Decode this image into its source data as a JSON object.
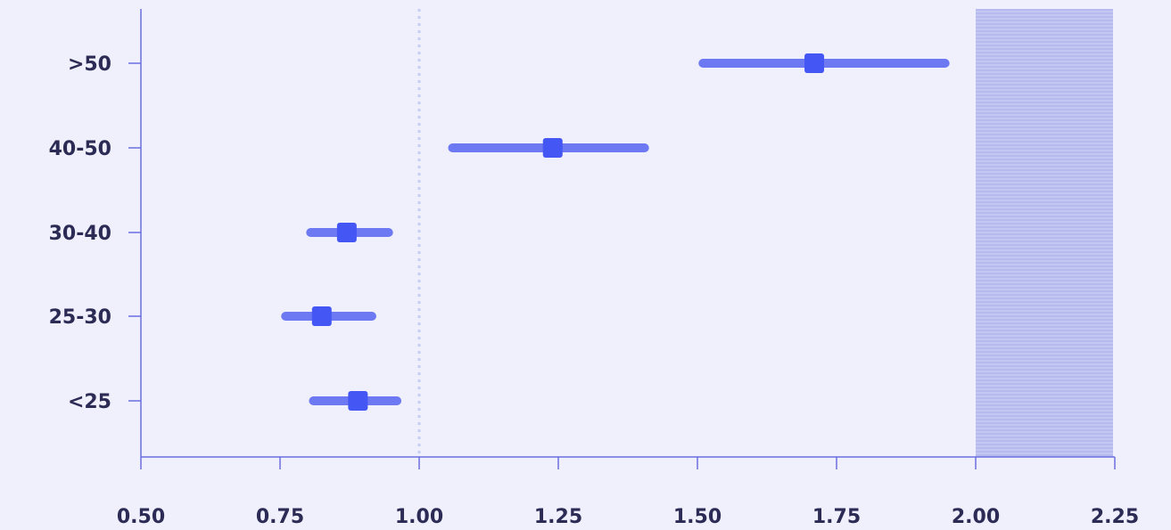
{
  "colors": {
    "background": "#eff0fb",
    "axis": "#6b6fe0",
    "ci_bar": "#6d79f2",
    "point": "#4457f5",
    "reference_line": "#c9ccf3",
    "shaded_region": "#b9bdee"
  },
  "chart_data": {
    "type": "forest",
    "title": "",
    "xlabel": "",
    "ylabel": "",
    "categories": [
      "<25",
      "25-30",
      "30-40",
      "40-50",
      ">50"
    ],
    "estimates": [
      0.89,
      0.825,
      0.87,
      1.24,
      1.71
    ],
    "ci_lower": [
      0.81,
      0.76,
      0.805,
      1.06,
      1.51
    ],
    "ci_upper": [
      0.96,
      0.915,
      0.945,
      1.405,
      1.945
    ],
    "reference_line": 1.0,
    "shaded_region": [
      2.0,
      2.25
    ],
    "xlim": [
      0.5,
      2.28
    ],
    "xticks": [
      0.5,
      0.75,
      1.0,
      1.25,
      1.5,
      1.75,
      2.0,
      2.25
    ],
    "xtick_labels": [
      "0.50",
      "0.75",
      "1.00",
      "1.25",
      "1.50",
      "1.75",
      "2.00",
      "2.25"
    ],
    "grid": false,
    "legend": "none"
  }
}
